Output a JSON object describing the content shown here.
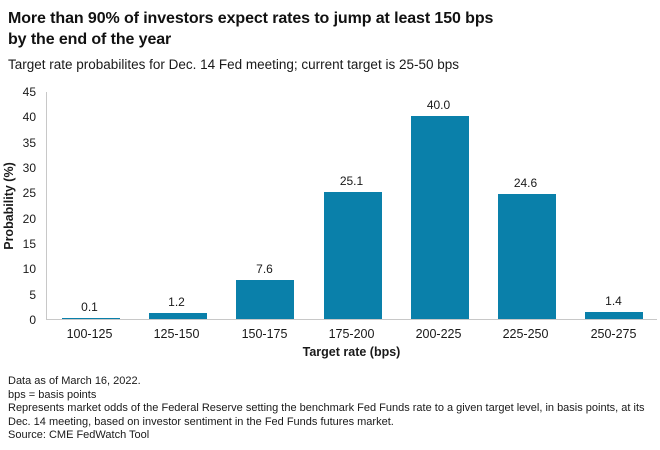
{
  "header": {
    "title_line1": "More than 90% of investors expect rates to jump at least 150 bps",
    "title_line2": "by the end of the year",
    "subtitle": "Target rate probabilites for Dec. 14 Fed meeting; current target is 25-50 bps"
  },
  "chart_data": {
    "type": "bar",
    "categories": [
      "100-125",
      "125-150",
      "150-175",
      "175-200",
      "200-225",
      "225-250",
      "250-275"
    ],
    "values": [
      0.1,
      1.2,
      7.6,
      25.1,
      40.0,
      24.6,
      1.4
    ],
    "value_labels": [
      "0.1",
      "1.2",
      "7.6",
      "25.1",
      "40.0",
      "24.6",
      "1.4"
    ],
    "xlabel": "Target rate (bps)",
    "ylabel": "Probability (%)",
    "ylim": [
      0,
      45
    ],
    "yticks": [
      0,
      5,
      10,
      15,
      20,
      25,
      30,
      35,
      40,
      45
    ],
    "grid": false,
    "legend_position": "none",
    "bar_color": "#0a80aa",
    "axis_color": "#c8c8c8"
  },
  "footer": {
    "lines": [
      "Data as of March 16, 2022.",
      "bps = basis points",
      "Represents market odds of the Federal Reserve setting the benchmark Fed Funds rate to a given target level, in basis points, at its Dec. 14 meeting, based on investor sentiment in the Fed Funds futures market.",
      "Source: CME FedWatch Tool"
    ]
  }
}
